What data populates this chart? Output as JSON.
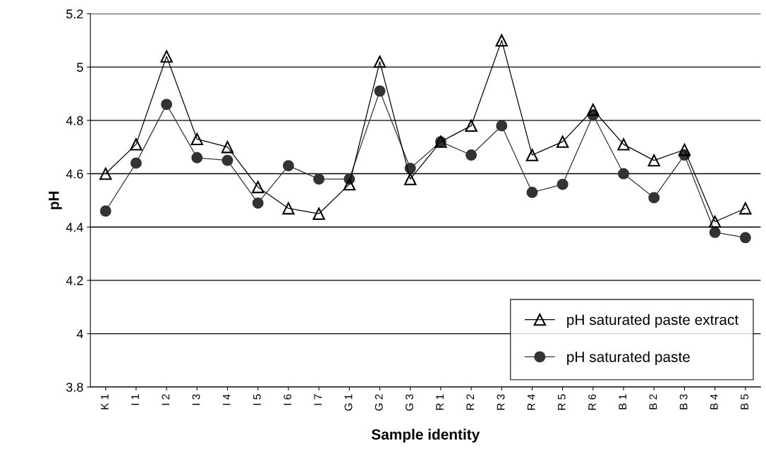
{
  "chart_data": {
    "type": "line",
    "xlabel": "Sample identity",
    "ylabel": "pH",
    "categories": [
      "K 1",
      "I 1",
      "I 2",
      "I 3",
      "I 4",
      "I 5",
      "I 6",
      "I 7",
      "G 1",
      "G 2",
      "G 3",
      "R 1",
      "R 2",
      "R 3",
      "R 4",
      "R 5",
      "R 6",
      "B 1",
      "B 2",
      "B 3",
      "B 4",
      "B 5"
    ],
    "series": [
      {
        "name": "pH saturated paste extract",
        "color": "#000000",
        "marker": "triangle",
        "values": [
          4.6,
          4.71,
          5.04,
          4.73,
          4.7,
          4.55,
          4.47,
          4.45,
          4.56,
          5.02,
          4.58,
          4.72,
          4.78,
          5.1,
          4.67,
          4.72,
          4.84,
          4.71,
          4.65,
          4.69,
          4.42,
          4.47
        ]
      },
      {
        "name": "pH saturated paste",
        "color": "#333333",
        "marker": "circle",
        "values": [
          4.46,
          4.64,
          4.86,
          4.66,
          4.65,
          4.49,
          4.63,
          4.58,
          4.58,
          4.91,
          4.62,
          4.72,
          4.67,
          4.78,
          4.53,
          4.56,
          4.82,
          4.6,
          4.51,
          4.67,
          4.38,
          4.36
        ]
      }
    ],
    "ylim": [
      3.8,
      5.2
    ],
    "yticks": [
      3.8,
      4.0,
      4.2,
      4.4,
      4.6,
      4.8,
      5.0,
      5.2
    ],
    "grid": "y",
    "legend": "bottom right",
    "line_style": "solid"
  }
}
